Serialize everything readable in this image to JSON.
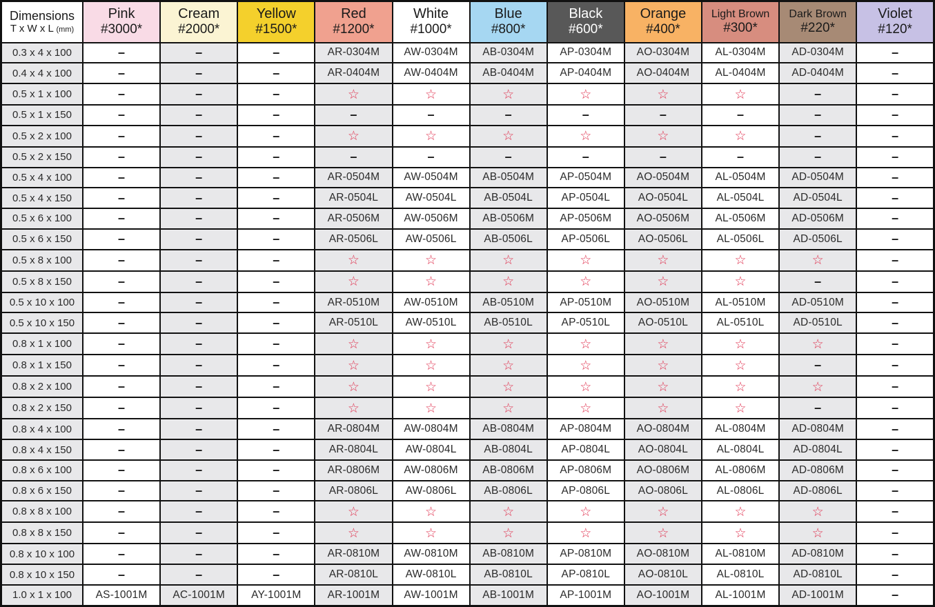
{
  "table": {
    "dimensions_header": {
      "title": "Dimensions",
      "sub": "T x W x L",
      "unit": "(mm)"
    },
    "symbols": {
      "dash": "–",
      "star": "☆"
    },
    "star_color": "#e03350",
    "stripe_color": "#e8e8ea",
    "grid_color": "#111111",
    "columns": [
      {
        "name": "Pink",
        "grit": "#3000*",
        "bg": "#f9dbe6",
        "fg": "#1a1a1a"
      },
      {
        "name": "Cream",
        "grit": "#2000*",
        "bg": "#fbf4d3",
        "fg": "#1a1a1a"
      },
      {
        "name": "Yellow",
        "grit": "#1500*",
        "bg": "#f4d02c",
        "fg": "#1a1a1a"
      },
      {
        "name": "Red",
        "grit": "#1200*",
        "bg": "#f0a18f",
        "fg": "#1a1a1a"
      },
      {
        "name": "White",
        "grit": "#1000*",
        "bg": "#ffffff",
        "fg": "#1a1a1a"
      },
      {
        "name": "Blue",
        "grit": "#800*",
        "bg": "#a6d7f2",
        "fg": "#1a1a1a"
      },
      {
        "name": "Black",
        "grit": "#600*",
        "bg": "#585858",
        "fg": "#ffffff"
      },
      {
        "name": "Orange",
        "grit": "#400*",
        "bg": "#f8b264",
        "fg": "#1a1a1a"
      },
      {
        "name": "Light Brown",
        "grit": "#300*",
        "bg": "#d78d7f",
        "fg": "#1a1a1a"
      },
      {
        "name": "Dark Brown",
        "grit": "#220*",
        "bg": "#a78a75",
        "fg": "#1a1a1a"
      },
      {
        "name": "Violet",
        "grit": "#120*",
        "bg": "#c7c1e5",
        "fg": "#1a1a1a"
      }
    ],
    "rows": [
      {
        "dim": "0.3 x 4 x 100",
        "cells": [
          "–",
          "–",
          "–",
          "AR-0304M",
          "AW-0304M",
          "AB-0304M",
          "AP-0304M",
          "AO-0304M",
          "AL-0304M",
          "AD-0304M",
          "–"
        ]
      },
      {
        "dim": "0.4 x 4 x 100",
        "cells": [
          "–",
          "–",
          "–",
          "AR-0404M",
          "AW-0404M",
          "AB-0404M",
          "AP-0404M",
          "AO-0404M",
          "AL-0404M",
          "AD-0404M",
          "–"
        ]
      },
      {
        "dim": "0.5 x 1 x 100",
        "cells": [
          "–",
          "–",
          "–",
          "☆",
          "☆",
          "☆",
          "☆",
          "☆",
          "☆",
          "–",
          "–"
        ]
      },
      {
        "dim": "0.5 x 1 x 150",
        "cells": [
          "–",
          "–",
          "–",
          "–",
          "–",
          "–",
          "–",
          "–",
          "–",
          "–",
          "–"
        ]
      },
      {
        "dim": "0.5 x 2 x 100",
        "cells": [
          "–",
          "–",
          "–",
          "☆",
          "☆",
          "☆",
          "☆",
          "☆",
          "☆",
          "–",
          "–"
        ]
      },
      {
        "dim": "0.5 x 2 x 150",
        "cells": [
          "–",
          "–",
          "–",
          "–",
          "–",
          "–",
          "–",
          "–",
          "–",
          "–",
          "–"
        ]
      },
      {
        "dim": "0.5 x 4 x 100",
        "cells": [
          "–",
          "–",
          "–",
          "AR-0504M",
          "AW-0504M",
          "AB-0504M",
          "AP-0504M",
          "AO-0504M",
          "AL-0504M",
          "AD-0504M",
          "–"
        ]
      },
      {
        "dim": "0.5 x 4 x 150",
        "cells": [
          "–",
          "–",
          "–",
          "AR-0504L",
          "AW-0504L",
          "AB-0504L",
          "AP-0504L",
          "AO-0504L",
          "AL-0504L",
          "AD-0504L",
          "–"
        ]
      },
      {
        "dim": "0.5 x 6 x 100",
        "cells": [
          "–",
          "–",
          "–",
          "AR-0506M",
          "AW-0506M",
          "AB-0506M",
          "AP-0506M",
          "AO-0506M",
          "AL-0506M",
          "AD-0506M",
          "–"
        ]
      },
      {
        "dim": "0.5 x 6 x 150",
        "cells": [
          "–",
          "–",
          "–",
          "AR-0506L",
          "AW-0506L",
          "AB-0506L",
          "AP-0506L",
          "AO-0506L",
          "AL-0506L",
          "AD-0506L",
          "–"
        ]
      },
      {
        "dim": "0.5 x 8 x 100",
        "cells": [
          "–",
          "–",
          "–",
          "☆",
          "☆",
          "☆",
          "☆",
          "☆",
          "☆",
          "☆",
          "–"
        ]
      },
      {
        "dim": "0.5 x 8 x 150",
        "cells": [
          "–",
          "–",
          "–",
          "☆",
          "☆",
          "☆",
          "☆",
          "☆",
          "☆",
          "–",
          "–"
        ]
      },
      {
        "dim": "0.5 x 10 x 100",
        "cells": [
          "–",
          "–",
          "–",
          "AR-0510M",
          "AW-0510M",
          "AB-0510M",
          "AP-0510M",
          "AO-0510M",
          "AL-0510M",
          "AD-0510M",
          "–"
        ]
      },
      {
        "dim": "0.5 x 10 x 150",
        "cells": [
          "–",
          "–",
          "–",
          "AR-0510L",
          "AW-0510L",
          "AB-0510L",
          "AP-0510L",
          "AO-0510L",
          "AL-0510L",
          "AD-0510L",
          "–"
        ]
      },
      {
        "dim": "0.8 x 1 x 100",
        "cells": [
          "–",
          "–",
          "–",
          "☆",
          "☆",
          "☆",
          "☆",
          "☆",
          "☆",
          "☆",
          "–"
        ]
      },
      {
        "dim": "0.8 x 1 x 150",
        "cells": [
          "–",
          "–",
          "–",
          "☆",
          "☆",
          "☆",
          "☆",
          "☆",
          "☆",
          "–",
          "–"
        ]
      },
      {
        "dim": "0.8 x 2 x 100",
        "cells": [
          "–",
          "–",
          "–",
          "☆",
          "☆",
          "☆",
          "☆",
          "☆",
          "☆",
          "☆",
          "–"
        ]
      },
      {
        "dim": "0.8 x 2 x 150",
        "cells": [
          "–",
          "–",
          "–",
          "☆",
          "☆",
          "☆",
          "☆",
          "☆",
          "☆",
          "–",
          "–"
        ]
      },
      {
        "dim": "0.8 x 4 x 100",
        "cells": [
          "–",
          "–",
          "–",
          "AR-0804M",
          "AW-0804M",
          "AB-0804M",
          "AP-0804M",
          "AO-0804M",
          "AL-0804M",
          "AD-0804M",
          "–"
        ]
      },
      {
        "dim": "0.8 x 4 x 150",
        "cells": [
          "–",
          "–",
          "–",
          "AR-0804L",
          "AW-0804L",
          "AB-0804L",
          "AP-0804L",
          "AO-0804L",
          "AL-0804L",
          "AD-0804L",
          "–"
        ]
      },
      {
        "dim": "0.8 x 6 x 100",
        "cells": [
          "–",
          "–",
          "–",
          "AR-0806M",
          "AW-0806M",
          "AB-0806M",
          "AP-0806M",
          "AO-0806M",
          "AL-0806M",
          "AD-0806M",
          "–"
        ]
      },
      {
        "dim": "0.8 x 6 x 150",
        "cells": [
          "–",
          "–",
          "–",
          "AR-0806L",
          "AW-0806L",
          "AB-0806L",
          "AP-0806L",
          "AO-0806L",
          "AL-0806L",
          "AD-0806L",
          "–"
        ]
      },
      {
        "dim": "0.8 x 8 x 100",
        "cells": [
          "–",
          "–",
          "–",
          "☆",
          "☆",
          "☆",
          "☆",
          "☆",
          "☆",
          "☆",
          "–"
        ]
      },
      {
        "dim": "0.8 x 8 x 150",
        "cells": [
          "–",
          "–",
          "–",
          "☆",
          "☆",
          "☆",
          "☆",
          "☆",
          "☆",
          "☆",
          "–"
        ]
      },
      {
        "dim": "0.8 x 10 x 100",
        "cells": [
          "–",
          "–",
          "–",
          "AR-0810M",
          "AW-0810M",
          "AB-0810M",
          "AP-0810M",
          "AO-0810M",
          "AL-0810M",
          "AD-0810M",
          "–"
        ]
      },
      {
        "dim": "0.8 x 10 x 150",
        "cells": [
          "–",
          "–",
          "–",
          "AR-0810L",
          "AW-0810L",
          "AB-0810L",
          "AP-0810L",
          "AO-0810L",
          "AL-0810L",
          "AD-0810L",
          "–"
        ]
      },
      {
        "dim": "1.0 x 1 x 100",
        "cells": [
          "AS-1001M",
          "AC-1001M",
          "AY-1001M",
          "AR-1001M",
          "AW-1001M",
          "AB-1001M",
          "AP-1001M",
          "AO-1001M",
          "AL-1001M",
          "AD-1001M",
          "–"
        ]
      }
    ]
  }
}
